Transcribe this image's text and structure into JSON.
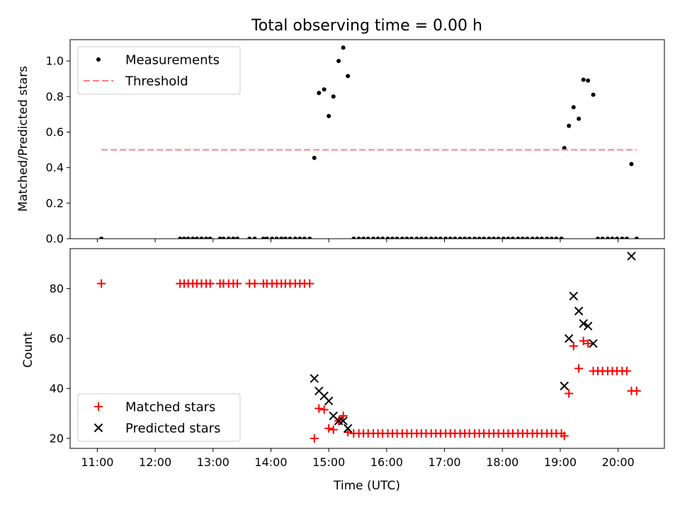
{
  "chart_data": [
    {
      "type": "scatter",
      "title": "Total observing time = 0.00 h",
      "xlabel": "",
      "ylabel": "Matched/Predicted stars",
      "xlim": [
        10.53,
        20.8
      ],
      "ylim": [
        0,
        1.12
      ],
      "yticks": [
        0.0,
        0.2,
        0.4,
        0.6,
        0.8,
        1.0
      ],
      "ytick_labels": [
        "0.0",
        "0.2",
        "0.4",
        "0.6",
        "0.8",
        "1.0"
      ],
      "legend_position": "upper-left",
      "series": [
        {
          "name": "Measurements",
          "marker": "dot",
          "color": "#000000",
          "x": [
            11.07,
            12.43,
            12.5,
            12.57,
            12.65,
            12.72,
            12.8,
            12.88,
            12.95,
            13.12,
            13.18,
            13.27,
            13.35,
            13.42,
            13.63,
            13.72,
            13.87,
            13.93,
            14.02,
            14.1,
            14.18,
            14.25,
            14.33,
            14.42,
            14.5,
            14.58,
            14.67,
            14.75,
            14.83,
            14.92,
            15.0,
            15.08,
            15.17,
            15.25,
            15.33,
            15.43,
            15.52,
            15.6,
            15.68,
            15.77,
            15.85,
            15.93,
            16.02,
            16.1,
            16.18,
            16.27,
            16.35,
            16.43,
            16.52,
            16.6,
            16.68,
            16.77,
            16.85,
            16.93,
            17.02,
            17.1,
            17.18,
            17.27,
            17.35,
            17.43,
            17.52,
            17.6,
            17.68,
            17.77,
            17.85,
            17.93,
            18.02,
            18.1,
            18.18,
            18.27,
            18.35,
            18.43,
            18.52,
            18.6,
            18.68,
            18.77,
            18.85,
            18.93,
            19.02,
            19.07,
            19.15,
            19.23,
            19.32,
            19.4,
            19.48,
            19.57,
            19.65,
            19.73,
            19.82,
            19.9,
            19.98,
            20.07,
            20.15,
            20.23,
            20.32
          ],
          "y": [
            0,
            0,
            0,
            0,
            0,
            0,
            0,
            0,
            0,
            0,
            0,
            0,
            0,
            0,
            0,
            0,
            0,
            0,
            0,
            0,
            0,
            0,
            0,
            0,
            0,
            0,
            0,
            0.455,
            0.82,
            0.84,
            0.69,
            0.8,
            1.0,
            1.075,
            0.915,
            0,
            0,
            0,
            0,
            0,
            0,
            0,
            0,
            0,
            0,
            0,
            0,
            0,
            0,
            0,
            0,
            0,
            0,
            0,
            0,
            0,
            0,
            0,
            0,
            0,
            0,
            0,
            0,
            0,
            0,
            0,
            0,
            0,
            0,
            0,
            0,
            0,
            0,
            0,
            0,
            0,
            0,
            0,
            0,
            0.51,
            0.635,
            0.74,
            0.675,
            0.895,
            0.89,
            0.81,
            0,
            0,
            0,
            0,
            0,
            0,
            0,
            0.42,
            0
          ]
        },
        {
          "name": "Threshold",
          "marker": "dashed-line",
          "color": "#ff7f7f",
          "x": [
            11.07,
            20.32
          ],
          "y": [
            0.5,
            0.5
          ]
        }
      ]
    },
    {
      "type": "scatter",
      "title": "",
      "xlabel": "Time (UTC)",
      "ylabel": "Count",
      "xlim": [
        10.53,
        20.8
      ],
      "ylim": [
        16,
        96
      ],
      "xticks": [
        11,
        12,
        13,
        14,
        15,
        16,
        17,
        18,
        19,
        20
      ],
      "xtick_labels": [
        "11:00",
        "12:00",
        "13:00",
        "14:00",
        "15:00",
        "16:00",
        "17:00",
        "18:00",
        "19:00",
        "20:00"
      ],
      "yticks": [
        20,
        40,
        60,
        80
      ],
      "ytick_labels": [
        "20",
        "40",
        "60",
        "80"
      ],
      "legend_position": "lower-left",
      "series": [
        {
          "name": "Matched stars",
          "marker": "plus",
          "color": "#ff0000",
          "x": [
            11.07,
            12.43,
            12.5,
            12.57,
            12.65,
            12.72,
            12.8,
            12.88,
            12.95,
            13.12,
            13.18,
            13.27,
            13.35,
            13.42,
            13.63,
            13.72,
            13.87,
            13.93,
            14.02,
            14.1,
            14.18,
            14.25,
            14.33,
            14.42,
            14.5,
            14.58,
            14.67,
            14.75,
            14.83,
            14.92,
            15.0,
            15.08,
            15.17,
            15.25,
            15.33,
            15.43,
            15.52,
            15.6,
            15.68,
            15.77,
            15.85,
            15.93,
            16.02,
            16.1,
            16.18,
            16.27,
            16.35,
            16.43,
            16.52,
            16.6,
            16.68,
            16.77,
            16.85,
            16.93,
            17.02,
            17.1,
            17.18,
            17.27,
            17.35,
            17.43,
            17.52,
            17.6,
            17.68,
            17.77,
            17.85,
            17.93,
            18.02,
            18.1,
            18.18,
            18.27,
            18.35,
            18.43,
            18.52,
            18.6,
            18.68,
            18.77,
            18.85,
            18.93,
            19.02,
            19.07,
            19.15,
            19.23,
            19.32,
            19.4,
            19.48,
            19.57,
            19.65,
            19.73,
            19.82,
            19.9,
            19.98,
            20.07,
            20.15,
            20.23,
            20.32
          ],
          "y": [
            82,
            82,
            82,
            82,
            82,
            82,
            82,
            82,
            82,
            82,
            82,
            82,
            82,
            82,
            82,
            82,
            82,
            82,
            82,
            82,
            82,
            82,
            82,
            82,
            82,
            82,
            82,
            20,
            32,
            31.5,
            24,
            23.5,
            27,
            29,
            22.5,
            22,
            22,
            22,
            22,
            22,
            22,
            22,
            22,
            22,
            22,
            22,
            22,
            22,
            22,
            22,
            22,
            22,
            22,
            22,
            22,
            22,
            22,
            22,
            22,
            22,
            22,
            22,
            22,
            22,
            22,
            22,
            22,
            22,
            22,
            22,
            22,
            22,
            22,
            22,
            22,
            22,
            22,
            22,
            22,
            21,
            38,
            57,
            48,
            59,
            58,
            47,
            47,
            47,
            47,
            47,
            47,
            47,
            47,
            39,
            39
          ]
        },
        {
          "name": "Predicted stars",
          "marker": "x",
          "color": "#000000",
          "x": [
            14.75,
            14.83,
            14.92,
            15.0,
            15.08,
            15.17,
            15.25,
            15.33,
            19.07,
            19.15,
            19.23,
            19.32,
            19.4,
            19.48,
            19.57,
            20.23
          ],
          "y": [
            44,
            39,
            37,
            35,
            29,
            27,
            27,
            24,
            41,
            60,
            77,
            71,
            66,
            65,
            58,
            93
          ]
        }
      ]
    }
  ]
}
